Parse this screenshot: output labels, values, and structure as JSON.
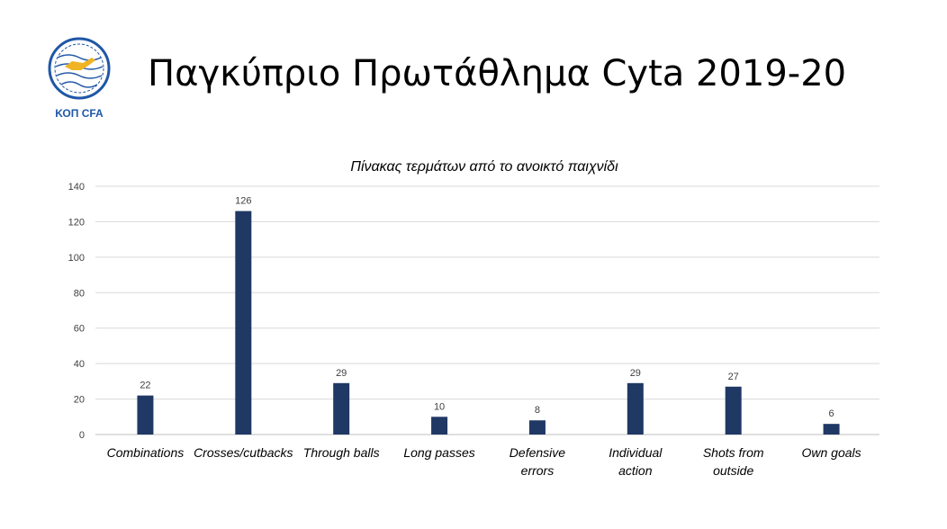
{
  "slide": {
    "title": "Παγκύπριο Πρωτάθλημα Cyta 2019-20",
    "logo_text": "ΚΟΠ CFA"
  },
  "colors": {
    "bar": "#203864",
    "logo": "#1f57a6",
    "logo_accent": "#f0b323",
    "grid": "#d9d9d9",
    "text": "#404040"
  },
  "chart_data": {
    "type": "bar",
    "title": "Πίνακας τερμάτων από το ανοικτό παιχνίδι",
    "categories": [
      "Combinations",
      "Crosses/cutbacks",
      "Through balls",
      "Long passes",
      "Defensive errors",
      "Individual action",
      "Shots from outside",
      "Own goals"
    ],
    "values": [
      22,
      126,
      29,
      10,
      8,
      29,
      27,
      6
    ],
    "ylim": [
      0,
      140
    ],
    "yticks": [
      0,
      20,
      40,
      60,
      80,
      100,
      120,
      140
    ],
    "grid": true,
    "data_labels": true,
    "legend": "none"
  }
}
